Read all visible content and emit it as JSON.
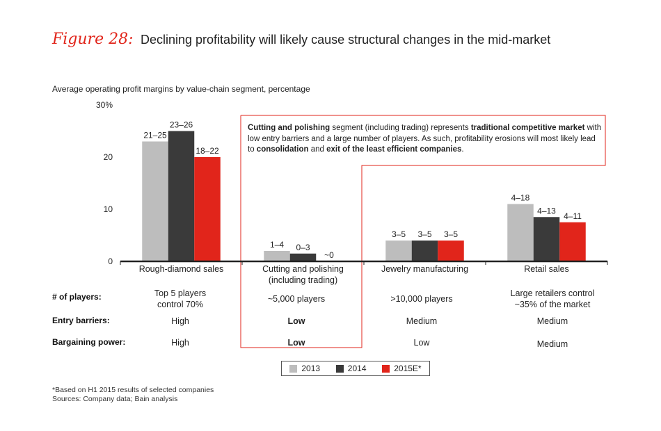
{
  "header": {
    "figure_label": "Figure 28:",
    "title": "Declining profitability will likely cause structural changes in the mid-market"
  },
  "colors": {
    "y2013": "#bdbdbd",
    "y2014": "#3a3a3a",
    "y2015": "#e1251b",
    "accent": "#e1251b"
  },
  "chart_data": {
    "type": "bar",
    "title": "Average operating profit margins by value-chain segment, percentage",
    "categories": [
      "Rough-diamond sales",
      "Cutting and polishing\n(including trading)",
      "Jewelry manufacturing",
      "Retail sales"
    ],
    "series": [
      {
        "name": "2013",
        "values": [
          23,
          2,
          4,
          11
        ],
        "labels": [
          "21–25",
          "1–4",
          "3–5",
          "4–18"
        ]
      },
      {
        "name": "2014",
        "values": [
          25,
          1.5,
          4,
          8.5
        ],
        "labels": [
          "23–26",
          "0–3",
          "3–5",
          "4–13"
        ]
      },
      {
        "name": "2015E*",
        "values": [
          20,
          0,
          4,
          7.5
        ],
        "labels": [
          "18–22",
          "~0",
          "3–5",
          "4–11"
        ]
      }
    ],
    "ylim": [
      0,
      30
    ],
    "yticks": [
      "0",
      "10",
      "20",
      "30%"
    ],
    "ytick_values": [
      0,
      10,
      20,
      30
    ]
  },
  "table": {
    "row_labels": [
      "# of players:",
      "Entry barriers:",
      "Bargaining power:"
    ],
    "players": [
      "Top 5 players\ncontrol 70%",
      "~5,000 players",
      ">10,000 players",
      "Large retailers control\n~35% of the market"
    ],
    "entry_barriers": [
      "High",
      "Low",
      "Medium",
      "Medium"
    ],
    "bargaining_power": [
      "High",
      "Low",
      "Low",
      "Medium"
    ]
  },
  "callout": {
    "t1": "Cutting and polishing",
    "t2": " segment (including trading) represents ",
    "t3": "traditional competitive market",
    "t4": " with low entry barriers and a large number of players. As such, profitability erosions will most likely lead to ",
    "t5": "consolidation",
    "t6": " and ",
    "t7": "exit of the least efficient companies",
    "t8": "."
  },
  "legend": {
    "items": [
      "2013",
      "2014",
      "2015E*"
    ]
  },
  "footnotes": {
    "note": "*Based on H1 2015 results of selected companies",
    "sources": "Sources: Company data; Bain analysis"
  }
}
